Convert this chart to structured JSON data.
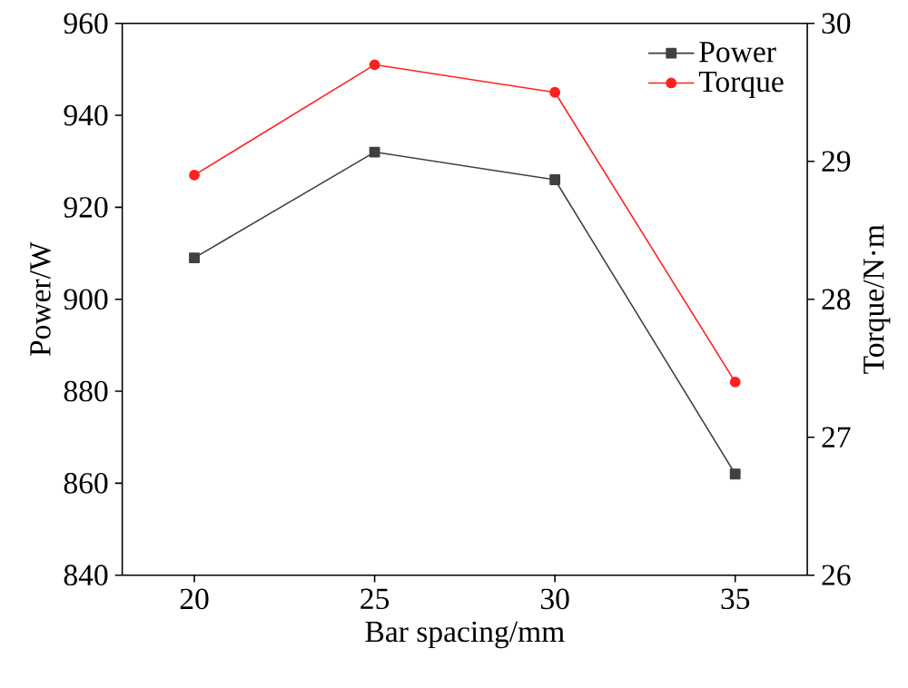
{
  "chart_data": {
    "type": "line",
    "xlabel": "Bar spacing/mm",
    "ylabel": "Power/W",
    "y2label": "Torque/N·m",
    "x": [
      20,
      25,
      30,
      35
    ],
    "xlim": [
      18,
      37
    ],
    "xticks": [
      20,
      25,
      30,
      35
    ],
    "ylim": [
      840,
      960
    ],
    "yticks": [
      840,
      860,
      880,
      900,
      920,
      940,
      960
    ],
    "y2lim": [
      26,
      30
    ],
    "y2ticks": [
      26,
      27,
      28,
      29,
      30
    ],
    "legend": "top right",
    "series": [
      {
        "name": "Power",
        "color": "#404040",
        "marker": "square",
        "values": [
          909,
          932,
          926,
          862
        ]
      },
      {
        "name": "Torque",
        "color": "#ff2020",
        "marker": "circle",
        "axis": "y2",
        "values": [
          28.9,
          29.7,
          29.5,
          27.4
        ]
      }
    ]
  }
}
